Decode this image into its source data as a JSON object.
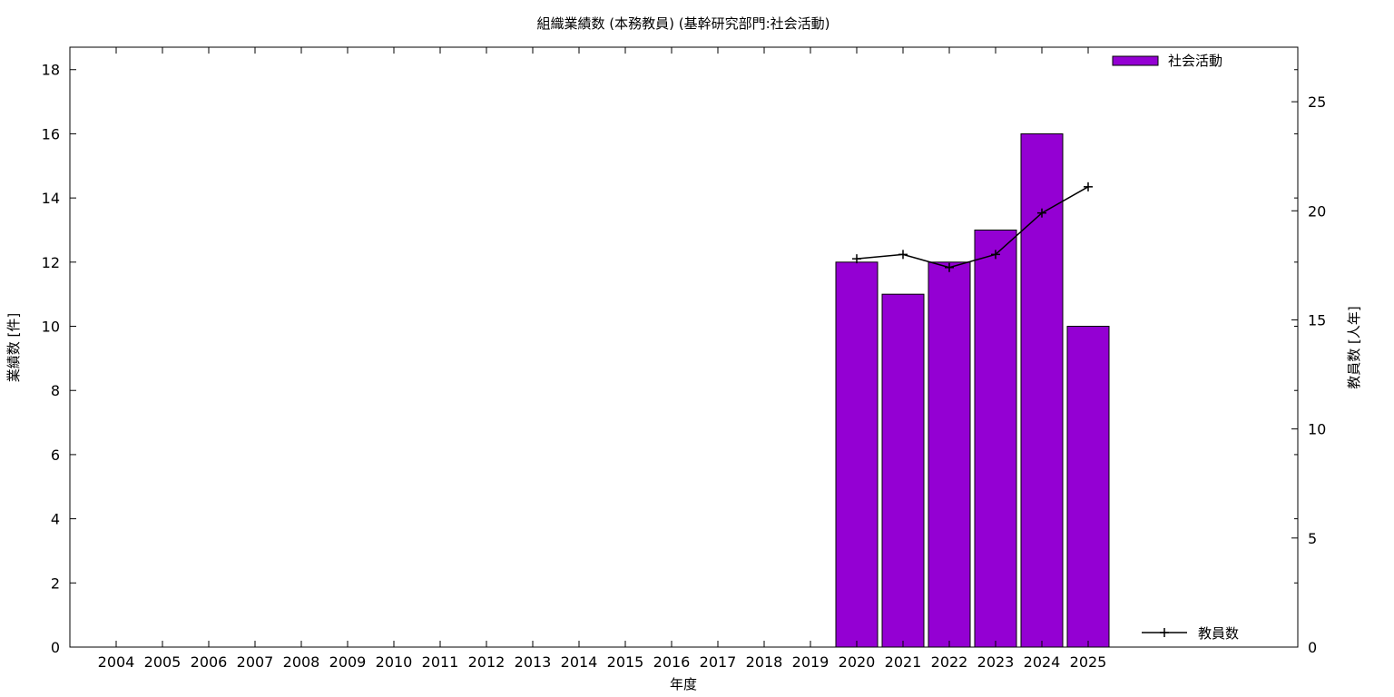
{
  "chart_data": {
    "type": "bar",
    "title": "組織業績数 (本務教員) (基幹研究部門:社会活動)",
    "xlabel": "年度",
    "ylabel": "業績数 [件]",
    "y2label": "教員数 [人年]",
    "categories": [
      "2004",
      "2005",
      "2006",
      "2007",
      "2008",
      "2009",
      "2010",
      "2011",
      "2012",
      "2013",
      "2014",
      "2015",
      "2016",
      "2017",
      "2018",
      "2019",
      "2020",
      "2021",
      "2022",
      "2023",
      "2024",
      "2025"
    ],
    "ylim": [
      0,
      18.7
    ],
    "y2lim": [
      0,
      27.5
    ],
    "yticks": [
      0,
      2,
      4,
      6,
      8,
      10,
      12,
      14,
      16,
      18
    ],
    "y2ticks": [
      0,
      5,
      10,
      15,
      20,
      25
    ],
    "grid": false,
    "series": [
      {
        "name": "社会活動",
        "type": "bar",
        "axis": "left",
        "color": "#9400d3",
        "values": [
          null,
          null,
          null,
          null,
          null,
          null,
          null,
          null,
          null,
          null,
          null,
          null,
          null,
          null,
          null,
          null,
          12,
          11,
          12,
          13,
          16,
          10
        ]
      },
      {
        "name": "教員数",
        "type": "line",
        "axis": "right",
        "color": "#000000",
        "marker": "plus",
        "values": [
          null,
          null,
          null,
          null,
          null,
          null,
          null,
          null,
          null,
          null,
          null,
          null,
          null,
          null,
          null,
          null,
          17.8,
          18.0,
          17.4,
          18.0,
          19.9,
          21.1
        ]
      }
    ],
    "legend": {
      "bar_position": "top-right",
      "line_position": "bottom-right"
    }
  }
}
